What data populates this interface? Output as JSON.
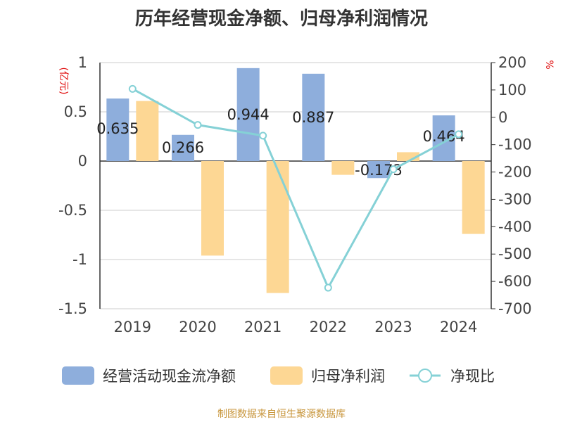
{
  "title": "历年经营现金净额、归母净利润情况",
  "source": "制图数据来自恒生聚源数据库",
  "chart_data": {
    "type": "bar",
    "categories": [
      "2019",
      "2020",
      "2021",
      "2022",
      "2023",
      "2024"
    ],
    "left_axis": {
      "unit": "(亿元)",
      "ticks": [
        "1",
        "0.5",
        "0",
        "-0.5",
        "-1",
        "-1.5"
      ],
      "range": [
        -1.5,
        1
      ]
    },
    "right_axis": {
      "unit": "%",
      "ticks": [
        "200",
        "100",
        "0",
        "-100",
        "-200",
        "-300",
        "-400",
        "-500",
        "-600",
        "-700"
      ],
      "range": [
        -700,
        200
      ]
    },
    "series": [
      {
        "name": "经营活动现金流净额",
        "kind": "bar",
        "axis": "left",
        "color": "#8eaedc",
        "values": [
          0.635,
          0.266,
          0.944,
          0.887,
          -0.173,
          0.464
        ],
        "labels": [
          "0.635",
          "0.266",
          "0.944",
          "0.887",
          "-0.173",
          "0.464"
        ]
      },
      {
        "name": "归母净利润",
        "kind": "bar",
        "axis": "left",
        "color": "#fdd794",
        "values": [
          0.61,
          -0.96,
          -1.34,
          -0.14,
          0.09,
          -0.74
        ]
      },
      {
        "name": "净现比",
        "kind": "line",
        "axis": "right",
        "color": "#85d1d6",
        "values": [
          104,
          -28,
          -67,
          -623,
          -190,
          -62
        ]
      }
    ],
    "grid": true,
    "legend_position": "bottom"
  }
}
